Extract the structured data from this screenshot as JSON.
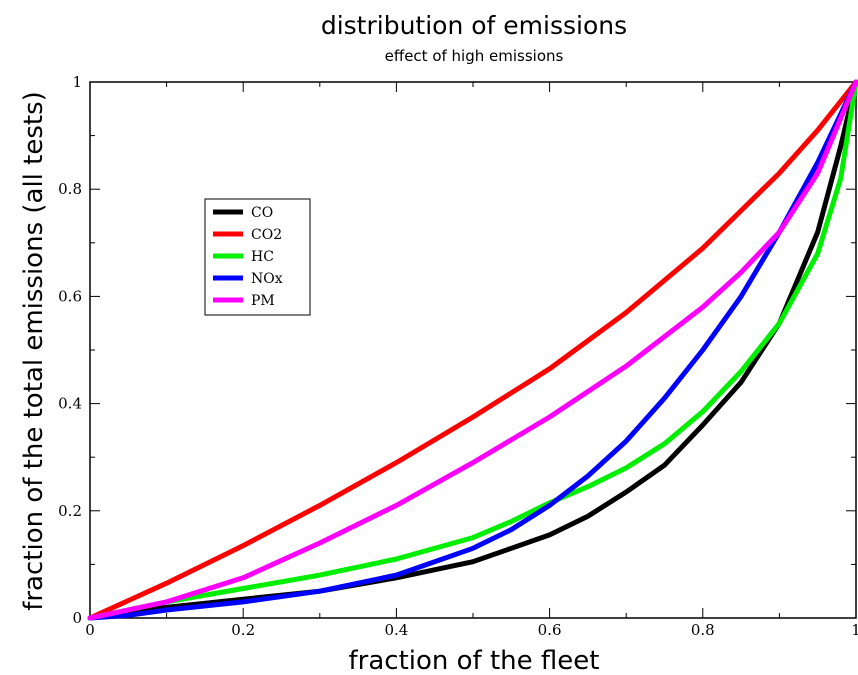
{
  "chart_data": {
    "type": "line",
    "title": "distribution of emissions",
    "subtitle": "effect of high emissions",
    "xlabel": "fraction of the fleet",
    "ylabel": "fraction of the total emissions (all tests)",
    "xlim": [
      0,
      1
    ],
    "ylim": [
      0,
      1
    ],
    "x_ticks": [
      "0",
      "0.2",
      "0.4",
      "0.6",
      "0.8",
      "1"
    ],
    "y_ticks": [
      "0",
      "0.2",
      "0.4",
      "0.6",
      "0.8",
      "1"
    ],
    "grid": false,
    "legend_position": "upper-left",
    "series": [
      {
        "name": "CO",
        "color": "#000000",
        "x": [
          0,
          0.05,
          0.1,
          0.2,
          0.3,
          0.4,
          0.5,
          0.55,
          0.6,
          0.65,
          0.7,
          0.75,
          0.8,
          0.85,
          0.9,
          0.95,
          0.98,
          1.0
        ],
        "y": [
          0,
          0.01,
          0.02,
          0.035,
          0.05,
          0.075,
          0.105,
          0.13,
          0.155,
          0.19,
          0.235,
          0.285,
          0.36,
          0.44,
          0.55,
          0.72,
          0.88,
          1.0
        ]
      },
      {
        "name": "CO2",
        "color": "#ff0000",
        "x": [
          0,
          0.1,
          0.2,
          0.3,
          0.4,
          0.5,
          0.6,
          0.7,
          0.8,
          0.85,
          0.9,
          0.95,
          1.0
        ],
        "y": [
          0,
          0.065,
          0.135,
          0.21,
          0.29,
          0.375,
          0.465,
          0.57,
          0.69,
          0.76,
          0.83,
          0.91,
          1.0
        ]
      },
      {
        "name": "HC",
        "color": "#00ee00",
        "x": [
          0,
          0.1,
          0.2,
          0.3,
          0.4,
          0.5,
          0.55,
          0.6,
          0.65,
          0.7,
          0.75,
          0.8,
          0.85,
          0.9,
          0.95,
          0.98,
          1.0
        ],
        "y": [
          0,
          0.03,
          0.055,
          0.08,
          0.11,
          0.15,
          0.18,
          0.215,
          0.245,
          0.28,
          0.325,
          0.385,
          0.46,
          0.55,
          0.68,
          0.82,
          1.0
        ]
      },
      {
        "name": "NOx",
        "color": "#0000ff",
        "x": [
          0,
          0.05,
          0.1,
          0.2,
          0.3,
          0.4,
          0.5,
          0.55,
          0.6,
          0.65,
          0.7,
          0.75,
          0.8,
          0.85,
          0.9,
          0.95,
          1.0
        ],
        "y": [
          0,
          0.005,
          0.015,
          0.03,
          0.05,
          0.08,
          0.13,
          0.165,
          0.21,
          0.265,
          0.33,
          0.41,
          0.5,
          0.6,
          0.72,
          0.85,
          1.0
        ]
      },
      {
        "name": "PM",
        "color": "#ff00ff",
        "x": [
          0,
          0.1,
          0.2,
          0.3,
          0.4,
          0.5,
          0.6,
          0.7,
          0.8,
          0.85,
          0.9,
          0.95,
          1.0
        ],
        "y": [
          0,
          0.03,
          0.075,
          0.14,
          0.21,
          0.29,
          0.375,
          0.47,
          0.58,
          0.645,
          0.72,
          0.83,
          1.0
        ]
      }
    ]
  }
}
